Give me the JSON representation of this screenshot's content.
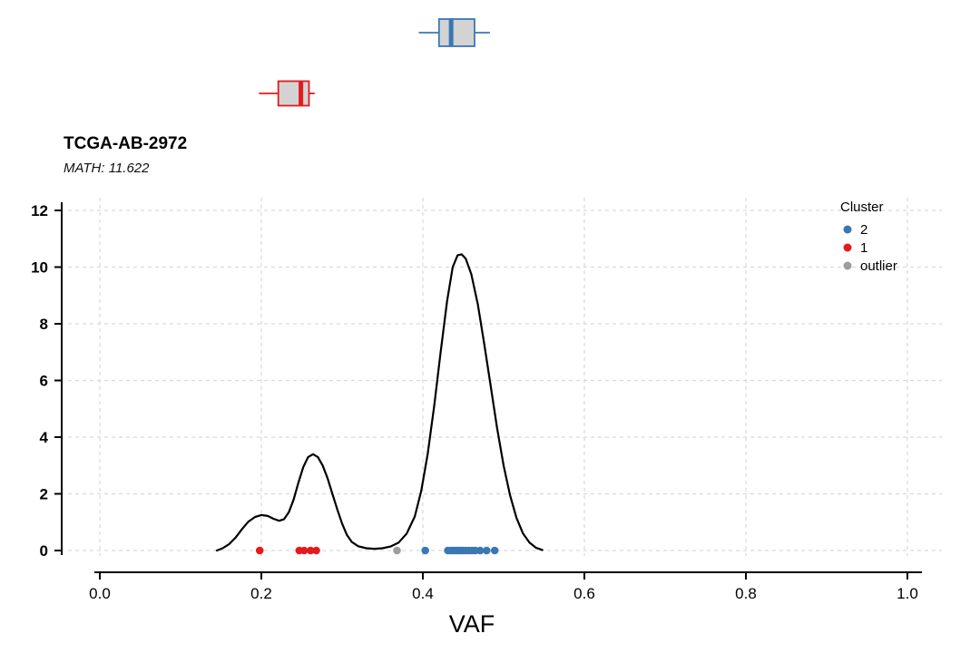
{
  "chart_data": {
    "type": "line",
    "subtype": "density_with_rug_points_and_boxplots",
    "title": "TCGA-AB-2972",
    "subtitle": "MATH: 11.622",
    "xlabel": "VAF",
    "ylabel": "",
    "xlim": [
      0.0,
      1.0
    ],
    "ylim": [
      0,
      12
    ],
    "x_tick_values": [
      0.0,
      0.2,
      0.4,
      0.6,
      0.8,
      1.0
    ],
    "x_tick_labels": [
      "0.0",
      "0.2",
      "0.4",
      "0.6",
      "0.8",
      "1.0"
    ],
    "y_tick_values": [
      0,
      2,
      4,
      6,
      8,
      10,
      12
    ],
    "y_tick_labels": [
      "0",
      "2",
      "4",
      "6",
      "8",
      "10",
      "12"
    ],
    "grid": "dashed",
    "colors": {
      "cluster2": "#3a77b4",
      "cluster1": "#e41a1c",
      "outlier": "#9d9d9d",
      "density_line": "#000000",
      "grid_line": "#d9d9d9",
      "box_fill": "#d3d3d3",
      "axis": "#000000"
    },
    "legend": {
      "title": "Cluster",
      "position": "top-right",
      "entries": [
        {
          "label": "2",
          "color": "#3a77b4"
        },
        {
          "label": "1",
          "color": "#e41a1c"
        },
        {
          "label": "outlier",
          "color": "#9d9d9d"
        }
      ]
    },
    "density_curve": [
      [
        0.145,
        0.0
      ],
      [
        0.152,
        0.08
      ],
      [
        0.16,
        0.22
      ],
      [
        0.168,
        0.45
      ],
      [
        0.176,
        0.75
      ],
      [
        0.184,
        1.02
      ],
      [
        0.192,
        1.18
      ],
      [
        0.2,
        1.25
      ],
      [
        0.208,
        1.22
      ],
      [
        0.215,
        1.12
      ],
      [
        0.222,
        1.05
      ],
      [
        0.228,
        1.1
      ],
      [
        0.234,
        1.35
      ],
      [
        0.24,
        1.8
      ],
      [
        0.246,
        2.4
      ],
      [
        0.252,
        2.95
      ],
      [
        0.258,
        3.3
      ],
      [
        0.264,
        3.4
      ],
      [
        0.27,
        3.3
      ],
      [
        0.276,
        3.0
      ],
      [
        0.282,
        2.55
      ],
      [
        0.288,
        2.0
      ],
      [
        0.294,
        1.45
      ],
      [
        0.3,
        0.95
      ],
      [
        0.306,
        0.55
      ],
      [
        0.312,
        0.3
      ],
      [
        0.32,
        0.15
      ],
      [
        0.33,
        0.08
      ],
      [
        0.34,
        0.06
      ],
      [
        0.35,
        0.08
      ],
      [
        0.36,
        0.14
      ],
      [
        0.37,
        0.28
      ],
      [
        0.38,
        0.6
      ],
      [
        0.39,
        1.2
      ],
      [
        0.398,
        2.1
      ],
      [
        0.406,
        3.4
      ],
      [
        0.414,
        5.1
      ],
      [
        0.422,
        7.0
      ],
      [
        0.43,
        8.8
      ],
      [
        0.437,
        10.0
      ],
      [
        0.443,
        10.42
      ],
      [
        0.448,
        10.45
      ],
      [
        0.453,
        10.3
      ],
      [
        0.46,
        9.75
      ],
      [
        0.468,
        8.7
      ],
      [
        0.476,
        7.3
      ],
      [
        0.484,
        5.8
      ],
      [
        0.492,
        4.3
      ],
      [
        0.5,
        3.0
      ],
      [
        0.508,
        1.95
      ],
      [
        0.516,
        1.15
      ],
      [
        0.524,
        0.6
      ],
      [
        0.532,
        0.28
      ],
      [
        0.54,
        0.1
      ],
      [
        0.548,
        0.02
      ]
    ],
    "points": [
      {
        "x": 0.198,
        "cluster": "1"
      },
      {
        "x": 0.247,
        "cluster": "1"
      },
      {
        "x": 0.253,
        "cluster": "1"
      },
      {
        "x": 0.261,
        "cluster": "1"
      },
      {
        "x": 0.268,
        "cluster": "1"
      },
      {
        "x": 0.368,
        "cluster": "outlier"
      },
      {
        "x": 0.403,
        "cluster": "2"
      },
      {
        "x": 0.431,
        "cluster": "2"
      },
      {
        "x": 0.435,
        "cluster": "2"
      },
      {
        "x": 0.438,
        "cluster": "2"
      },
      {
        "x": 0.441,
        "cluster": "2"
      },
      {
        "x": 0.444,
        "cluster": "2"
      },
      {
        "x": 0.447,
        "cluster": "2"
      },
      {
        "x": 0.45,
        "cluster": "2"
      },
      {
        "x": 0.453,
        "cluster": "2"
      },
      {
        "x": 0.457,
        "cluster": "2"
      },
      {
        "x": 0.461,
        "cluster": "2"
      },
      {
        "x": 0.465,
        "cluster": "2"
      },
      {
        "x": 0.471,
        "cluster": "2"
      },
      {
        "x": 0.479,
        "cluster": "2"
      },
      {
        "x": 0.489,
        "cluster": "2"
      }
    ],
    "boxplots": [
      {
        "cluster": "2",
        "color": "#3a77b4",
        "whisker_low": 0.395,
        "q1": 0.42,
        "median": 0.435,
        "q3": 0.464,
        "whisker_high": 0.483
      },
      {
        "cluster": "1",
        "color": "#e41a1c",
        "whisker_low": 0.197,
        "q1": 0.221,
        "median": 0.249,
        "q3": 0.259,
        "whisker_high": 0.266
      }
    ]
  }
}
